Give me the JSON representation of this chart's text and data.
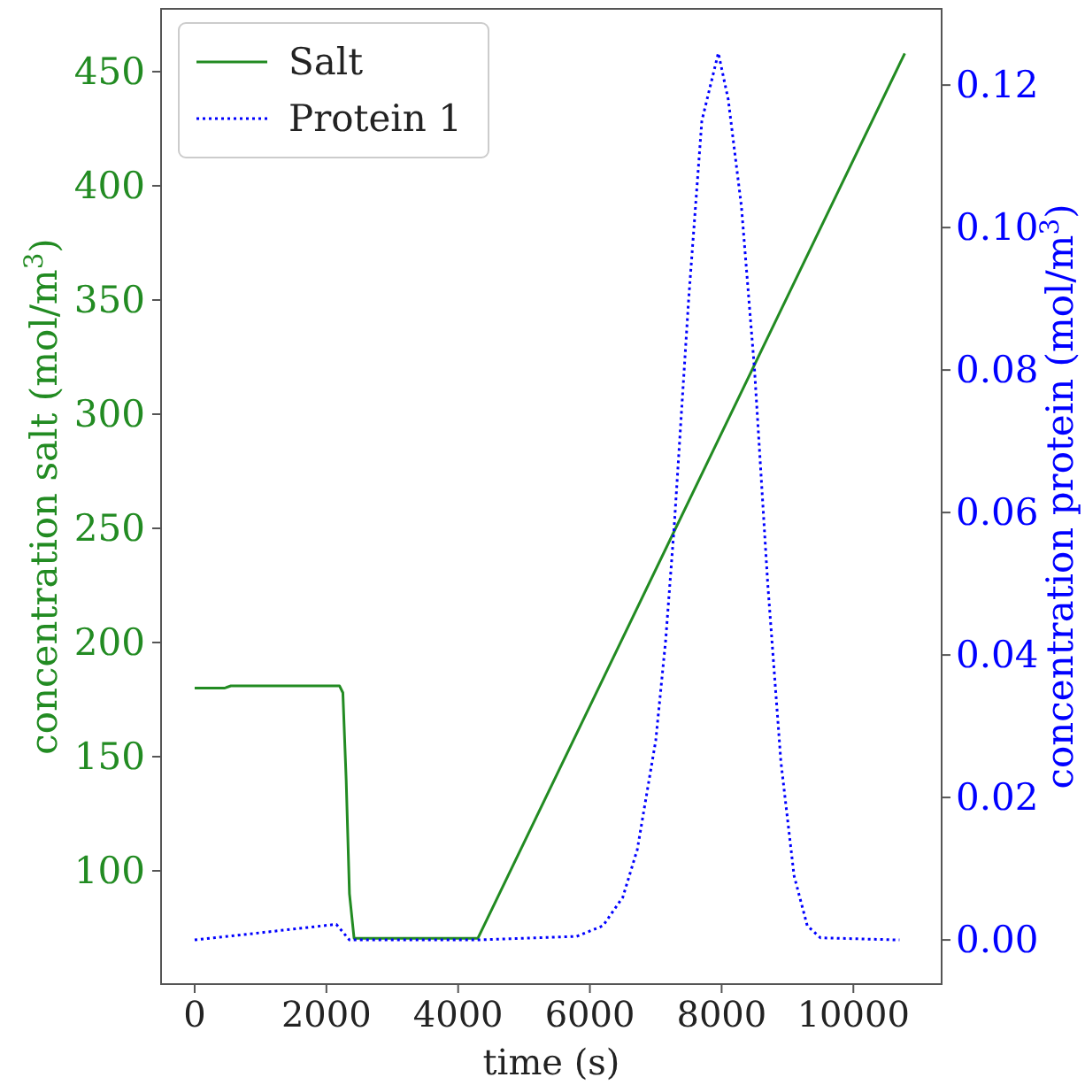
{
  "chart_data": {
    "type": "line",
    "xlabel": "time (s)",
    "ylabel": "concentration salt (mol/m$^{3}$)",
    "y2label": "concentration protein (mol/m$^{3}$)",
    "xlim": [
      -510,
      11340
    ],
    "xticks": [
      0,
      2000,
      4000,
      6000,
      8000,
      10000
    ],
    "ylim": [
      50.4,
      477.5
    ],
    "yticks": [
      100,
      150,
      200,
      250,
      300,
      350,
      400,
      450
    ],
    "y2lim": [
      -0.0062,
      0.1307
    ],
    "y2ticks": [
      {
        "value": 0,
        "label": "0.00"
      },
      {
        "value": 0.02,
        "label": "0.02"
      },
      {
        "value": 0.04,
        "label": "0.04"
      },
      {
        "value": 0.06,
        "label": "0.06"
      },
      {
        "value": 0.08,
        "label": "0.08"
      },
      {
        "value": 0.1,
        "label": "0.10"
      },
      {
        "value": 0.12,
        "label": "0.12"
      }
    ],
    "legend": "top left",
    "grid": false,
    "series": [
      {
        "name": "Salt",
        "color": "#228b22",
        "line_style": "solid",
        "x": [
          0,
          450,
          550,
          2200,
          2250,
          2300,
          2350,
          2420,
          4300,
          10780
        ],
        "values": [
          180,
          180,
          181,
          181,
          178,
          140,
          90,
          70.5,
          70.5,
          458
        ]
      },
      {
        "name": "Protein 1",
        "color": "#0000ff",
        "line_style": "dotted",
        "axis": "y2",
        "x": [
          0,
          500,
          2150,
          2350,
          4300,
          5800,
          6200,
          6500,
          6720,
          7000,
          7150,
          7280,
          7500,
          7700,
          7950,
          8100,
          8300,
          8500,
          8700,
          8900,
          9100,
          9300,
          9500,
          10700
        ],
        "values": [
          0,
          0.0005,
          0.0022,
          0,
          0,
          0.0005,
          0.002,
          0.006,
          0.0127,
          0.028,
          0.042,
          0.058,
          0.09,
          0.115,
          0.1245,
          0.118,
          0.103,
          0.08,
          0.05,
          0.025,
          0.009,
          0.002,
          0.0003,
          0
        ]
      }
    ]
  }
}
